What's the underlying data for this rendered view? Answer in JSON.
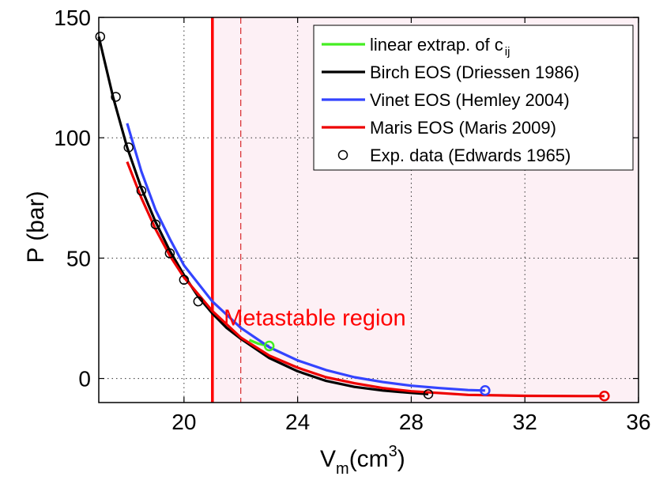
{
  "chart_data": {
    "type": "line",
    "xlabel": "V",
    "xlabel_sub": "m",
    "xlabel_unit": "(cm",
    "xlabel_sup": "3",
    "xlabel_close": ")",
    "ylabel": "P (bar)",
    "xlim": [
      17,
      36
    ],
    "ylim": [
      -10,
      150
    ],
    "xticks": [
      20,
      24,
      28,
      32,
      36
    ],
    "yticks": [
      0,
      50,
      100,
      150
    ],
    "grid": true,
    "legend_position": "top-right",
    "shaded_region": {
      "from": 21,
      "to": 36,
      "color": "#fdf0f5"
    },
    "vertical_lines": [
      {
        "x": 21,
        "color": "#ff0000",
        "style": "solid"
      },
      {
        "x": 22,
        "color": "#d00000",
        "style": "dashed"
      }
    ],
    "annotation": {
      "text": "Metastable region",
      "x": 21.4,
      "y": 22,
      "color": "#ff0000"
    },
    "series": [
      {
        "name": "linear extrap. of c",
        "name_sub": "ij",
        "color": "#44ee22",
        "style": "line",
        "x": [
          22.3,
          22.6,
          23.0
        ],
        "y": [
          16,
          14.5,
          13.5
        ],
        "end_marker": {
          "x": 23.0,
          "y": 13.5
        }
      },
      {
        "name": "Birch EOS (Driessen 1986)",
        "color": "#000000",
        "style": "line",
        "x": [
          17.0,
          17.5,
          18.0,
          18.5,
          19.0,
          19.5,
          20.0,
          20.5,
          21.0,
          21.5,
          22.0,
          23.0,
          24.0,
          25.0,
          26.0,
          27.0,
          28.0,
          28.6
        ],
        "y": [
          142,
          117,
          96,
          79,
          65,
          53,
          43,
          34,
          27,
          21,
          16.5,
          8.5,
          3,
          -1,
          -3.5,
          -5,
          -6,
          -6.5
        ]
      },
      {
        "name": "Vinet EOS (Hemley 2004)",
        "color": "#3344ff",
        "style": "line",
        "x": [
          18.0,
          18.5,
          19.0,
          19.5,
          20.0,
          21.0,
          22.0,
          23.0,
          24.0,
          25.0,
          26.0,
          27.0,
          28.0,
          29.0,
          30.0,
          30.6
        ],
        "y": [
          106,
          86,
          70,
          58,
          47,
          32,
          21,
          13,
          7.5,
          3.5,
          0.5,
          -1.5,
          -3,
          -4,
          -4.8,
          -5
        ]
      },
      {
        "name": "Maris EOS (Maris 2009)",
        "color": "#ee0000",
        "style": "line",
        "x": [
          18.0,
          18.5,
          19.0,
          19.5,
          20.0,
          21.0,
          22.0,
          23.0,
          24.0,
          25.0,
          26.0,
          27.0,
          28.0,
          30.0,
          32.0,
          34.0,
          34.8
        ],
        "y": [
          90,
          75,
          62,
          51,
          42,
          28,
          17,
          9.5,
          4.5,
          0.5,
          -2,
          -4,
          -5.3,
          -6.8,
          -7.2,
          -7.3,
          -7.3
        ],
        "end_marker": {
          "x": 34.8,
          "y": -7.3
        }
      },
      {
        "name": "Exp. data (Edwards 1965)",
        "color": "#000000",
        "style": "markers",
        "x": [
          17.05,
          17.6,
          18.05,
          18.5,
          19.0,
          19.5,
          20.0,
          20.5,
          28.6
        ],
        "y": [
          142,
          117,
          96,
          78,
          64,
          52,
          41,
          32,
          -6.5
        ]
      }
    ],
    "extra_markers": [
      {
        "x": 30.6,
        "y": -5,
        "color": "#3344ff"
      }
    ]
  }
}
